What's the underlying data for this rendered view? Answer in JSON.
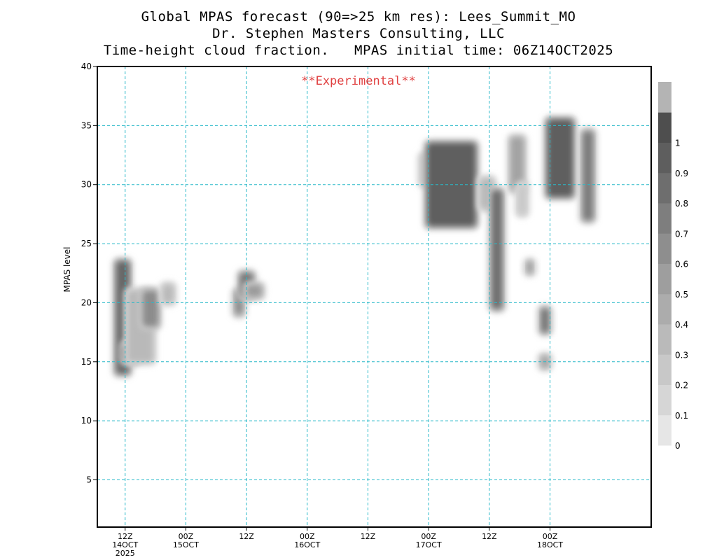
{
  "title_lines": [
    "Global MPAS forecast (90=>25 km res): Lees_Summit_MO",
    "Dr. Stephen Masters Consulting, LLC",
    "Time-height cloud fraction.   MPAS initial time: 06Z14OCT2025"
  ],
  "watermark": "**Experimental**",
  "colors": {
    "grid": "#29b9c9",
    "watermark": "#e04040"
  },
  "chart_data": {
    "type": "heatmap",
    "ylabel": "MPAS level",
    "ylim": [
      1,
      40
    ],
    "yticks": [
      5,
      10,
      15,
      20,
      25,
      30,
      35,
      40
    ],
    "xlim_hours": [
      0.5,
      110
    ],
    "xticks": [
      {
        "hour": 6,
        "lines": [
          "12Z",
          "14OCT",
          "2025"
        ]
      },
      {
        "hour": 18,
        "lines": [
          "00Z",
          "15OCT"
        ]
      },
      {
        "hour": 30,
        "lines": [
          "12Z"
        ]
      },
      {
        "hour": 42,
        "lines": [
          "00Z",
          "16OCT"
        ]
      },
      {
        "hour": 54,
        "lines": [
          "12Z"
        ]
      },
      {
        "hour": 66,
        "lines": [
          "00Z",
          "17OCT"
        ]
      },
      {
        "hour": 78,
        "lines": [
          "12Z"
        ]
      },
      {
        "hour": 90,
        "lines": [
          "00Z",
          "18OCT"
        ]
      }
    ],
    "grid": true,
    "colorbar": {
      "labels": [
        "0",
        "0.1",
        "0.2",
        "0.3",
        "0.4",
        "0.5",
        "0.6",
        "0.7",
        "0.8",
        "0.9",
        "1"
      ],
      "colors": [
        "#e6e6e6",
        "#d6d6d6",
        "#c8c8c8",
        "#bababa",
        "#acacac",
        "#9e9e9e",
        "#8e8e8e",
        "#7e7e7e",
        "#6e6e6e",
        "#5e5e5e",
        "#4e4e4e",
        "#b4b4b4"
      ]
    },
    "cloud_blobs": [
      {
        "hour": 5.5,
        "level_bottom": 14,
        "level_top": 23.5,
        "width_h": 2.5,
        "fraction": 0.85
      },
      {
        "hour": 7.0,
        "level_bottom": 15,
        "level_top": 16.5,
        "width_h": 3.0,
        "fraction": 0.8
      },
      {
        "hour": 9.0,
        "level_bottom": 15,
        "level_top": 21,
        "width_h": 5.0,
        "fraction": 0.3
      },
      {
        "hour": 11.0,
        "level_bottom": 18,
        "level_top": 21,
        "width_h": 3.0,
        "fraction": 0.6
      },
      {
        "hour": 14.5,
        "level_bottom": 20,
        "level_top": 21.5,
        "width_h": 2.0,
        "fraction": 0.3
      },
      {
        "hour": 28.5,
        "level_bottom": 19,
        "level_top": 21,
        "width_h": 1.5,
        "fraction": 0.6
      },
      {
        "hour": 30.0,
        "level_bottom": 20.5,
        "level_top": 22.5,
        "width_h": 2.5,
        "fraction": 0.75
      },
      {
        "hour": 31.5,
        "level_bottom": 20.5,
        "level_top": 21.5,
        "width_h": 3.0,
        "fraction": 0.5
      },
      {
        "hour": 65.5,
        "level_bottom": 30,
        "level_top": 32.5,
        "width_h": 2.0,
        "fraction": 0.2
      },
      {
        "hour": 70.5,
        "level_bottom": 26.5,
        "level_top": 33.5,
        "width_h": 9.5,
        "fraction": 0.9
      },
      {
        "hour": 77.5,
        "level_bottom": 28,
        "level_top": 30.5,
        "width_h": 2.5,
        "fraction": 0.3
      },
      {
        "hour": 79.5,
        "level_bottom": 19.5,
        "level_top": 29.5,
        "width_h": 2.0,
        "fraction": 0.8
      },
      {
        "hour": 83.5,
        "level_bottom": 29.5,
        "level_top": 34,
        "width_h": 2.5,
        "fraction": 0.45
      },
      {
        "hour": 86.0,
        "level_bottom": 22.5,
        "level_top": 23.5,
        "width_h": 1.0,
        "fraction": 0.5
      },
      {
        "hour": 84.5,
        "level_bottom": 27.5,
        "level_top": 30,
        "width_h": 1.5,
        "fraction": 0.2
      },
      {
        "hour": 89.0,
        "level_bottom": 17.5,
        "level_top": 19.5,
        "width_h": 1.5,
        "fraction": 0.75
      },
      {
        "hour": 89.0,
        "level_bottom": 14.5,
        "level_top": 15.5,
        "width_h": 1.5,
        "fraction": 0.45
      },
      {
        "hour": 92.0,
        "level_bottom": 29,
        "level_top": 35.5,
        "width_h": 5.0,
        "fraction": 0.9
      },
      {
        "hour": 97.5,
        "level_bottom": 27,
        "level_top": 34.5,
        "width_h": 2.0,
        "fraction": 0.7
      }
    ]
  }
}
